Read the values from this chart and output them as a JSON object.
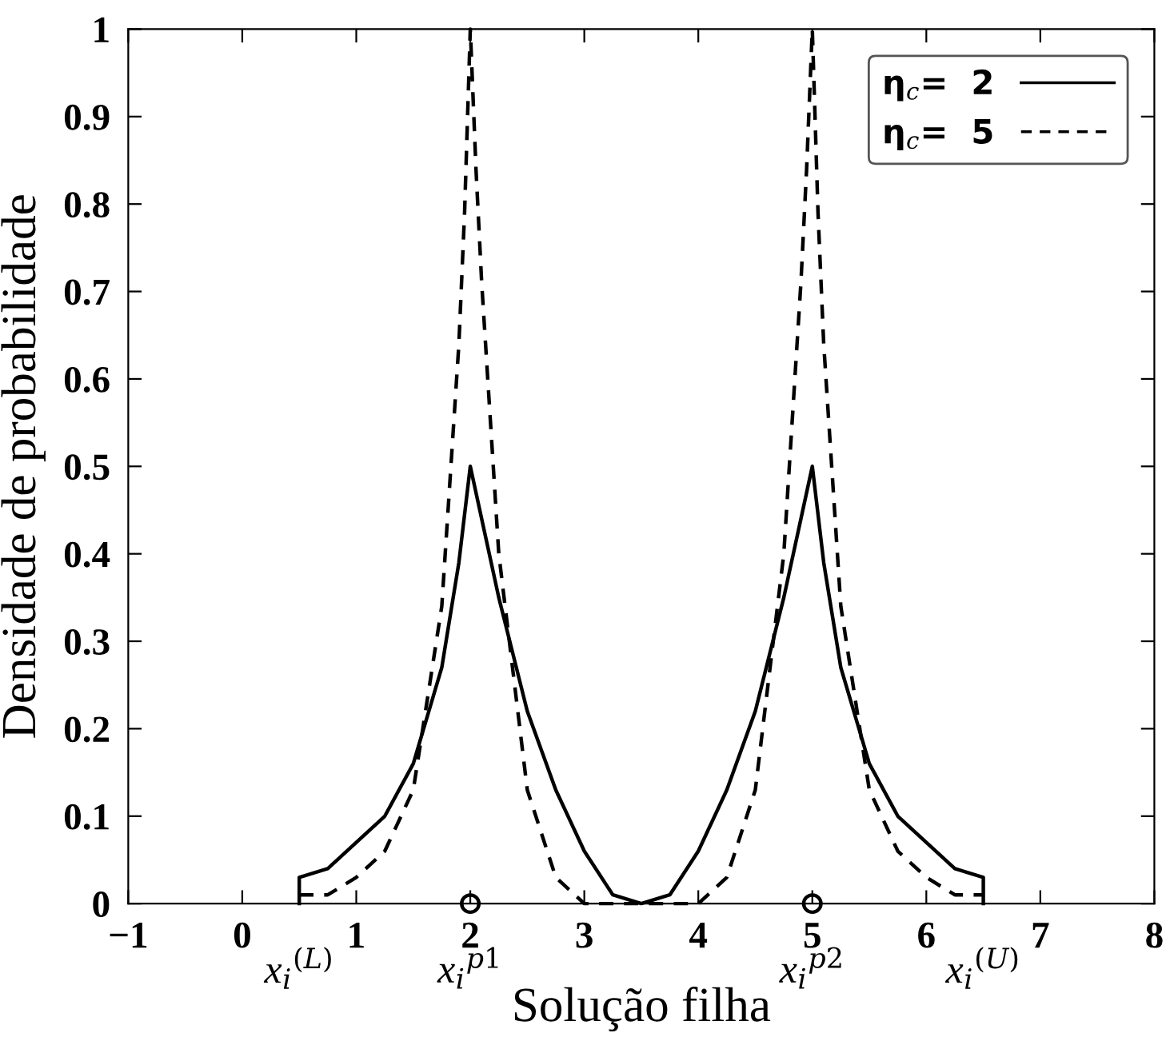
{
  "chart_data": {
    "type": "line",
    "xlabel": "Solução filha",
    "ylabel": "Densidade de probabilidade",
    "xlim": [
      -1,
      8
    ],
    "xticks": [
      -1,
      0,
      1,
      2,
      3,
      4,
      5,
      6,
      7,
      8
    ],
    "ylim": [
      0,
      1
    ],
    "yticks": [
      0,
      0.1,
      0.2,
      0.3,
      0.4,
      0.5,
      0.6,
      0.7,
      0.8,
      0.9,
      1
    ],
    "grid": false,
    "legend": "top right",
    "series": [
      {
        "name": "η$_{c}$=  2",
        "color": "#000000",
        "line_style": "solid",
        "x": [
          0.5,
          0.5,
          0.75,
          1,
          1.25,
          1.5,
          1.75,
          1.9,
          2,
          2.1,
          2.25,
          2.5,
          2.75,
          3,
          3.25,
          3.5,
          3.75,
          4,
          4.25,
          4.5,
          4.75,
          4.9,
          5,
          5.1,
          5.25,
          5.5,
          5.75,
          6,
          6.25,
          6.5,
          6.5
        ],
        "values": [
          0,
          0.03,
          0.04,
          0.07,
          0.1,
          0.16,
          0.27,
          0.39,
          0.5,
          0.44,
          0.35,
          0.22,
          0.13,
          0.06,
          0.01,
          0,
          0.01,
          0.06,
          0.13,
          0.22,
          0.35,
          0.44,
          0.5,
          0.39,
          0.27,
          0.16,
          0.1,
          0.07,
          0.04,
          0.03,
          0
        ]
      },
      {
        "name": "η$_{c}$=  5",
        "color": "#000000",
        "line_style": "dashed",
        "x": [
          0.5,
          0.75,
          1,
          1.25,
          1.5,
          1.75,
          1.9,
          1.95,
          2,
          2.05,
          2.1,
          2.25,
          2.5,
          2.75,
          3,
          3.25,
          3.5,
          3.75,
          4,
          4.25,
          4.5,
          4.75,
          4.9,
          4.95,
          5,
          5.05,
          5.1,
          5.25,
          5.5,
          5.75,
          6,
          6.25,
          6.5
        ],
        "values": [
          0.01,
          0.01,
          0.03,
          0.06,
          0.13,
          0.34,
          0.64,
          0.79,
          1,
          0.84,
          0.71,
          0.4,
          0.13,
          0.03,
          0,
          0,
          0,
          0,
          0,
          0.03,
          0.13,
          0.4,
          0.71,
          0.84,
          1,
          0.79,
          0.64,
          0.34,
          0.13,
          0.06,
          0.03,
          0.01,
          0.01
        ]
      },
      {
        "type": "scatter",
        "marker": "circle",
        "color": "#000000",
        "x": [
          2,
          5
        ],
        "values": [
          0,
          0
        ]
      }
    ],
    "annotations": [
      {
        "text": "x$_{i}$$^{(L)}$",
        "x": 0.5,
        "y": 0
      },
      {
        "text": "x$_{i}$$^{p1}$",
        "x": 2,
        "y": 0
      },
      {
        "text": "x$_{i}$$^{p2}$",
        "x": 5,
        "y": 0
      },
      {
        "text": "x$_{i}$$^{(U)}$",
        "x": 6.5,
        "y": 0
      }
    ]
  }
}
